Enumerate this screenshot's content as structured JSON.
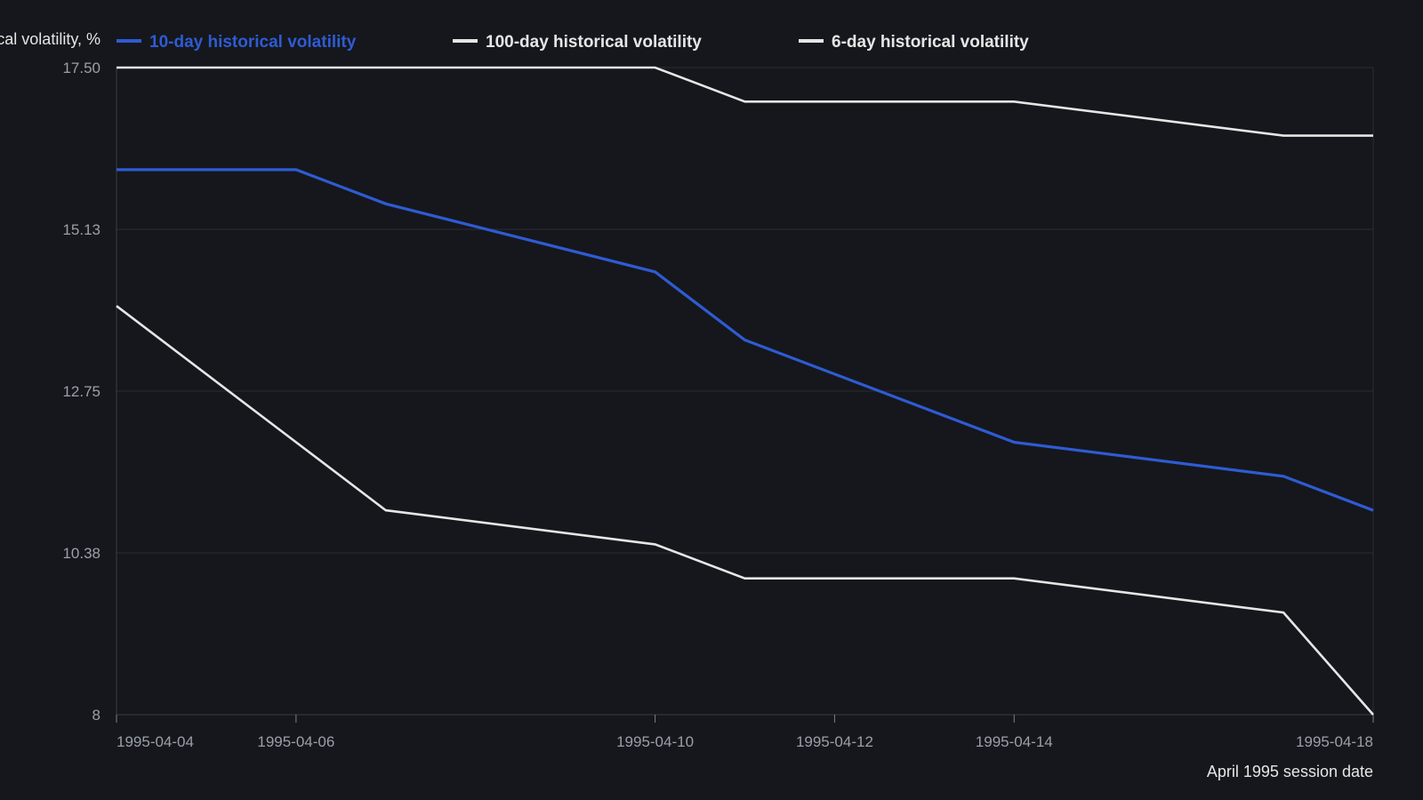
{
  "chart_data": {
    "type": "line",
    "title": "",
    "xlabel": "April 1995 session date",
    "ylabel": "Historical volatility, %",
    "ylim": [
      8,
      17.5
    ],
    "y_ticks": [
      "8",
      "10.38",
      "12.75",
      "15.13",
      "17.50"
    ],
    "y_tick_values": [
      8,
      10.375,
      12.75,
      15.125,
      17.5
    ],
    "x_ticks": [
      "1995-04-04",
      "1995-04-06",
      "1995-04-10",
      "1995-04-12",
      "1995-04-14",
      "1995-04-18"
    ],
    "x": [
      "1995-04-04",
      "1995-04-06",
      "1995-04-07",
      "1995-04-10",
      "1995-04-11",
      "1995-04-14",
      "1995-04-17",
      "1995-04-18"
    ],
    "xlim": [
      "1995-04-04",
      "1995-04-18"
    ],
    "grid": true,
    "legend_position": "top-left",
    "series": [
      {
        "name": "10-day historical volatility",
        "color": "#2f5bd3",
        "values": [
          16.0,
          16.0,
          15.5,
          14.5,
          13.5,
          12.0,
          11.5,
          11.0
        ]
      },
      {
        "name": "100-day historical volatility",
        "color": "#e6e6e6",
        "values": [
          17.5,
          17.5,
          17.5,
          17.5,
          17.0,
          17.0,
          16.5,
          16.5
        ]
      },
      {
        "name": "6-day historical volatility",
        "color": "#e6e6e6",
        "values": [
          14.0,
          12.0,
          11.0,
          10.5,
          10.0,
          10.0,
          9.5,
          8.0
        ]
      }
    ]
  }
}
